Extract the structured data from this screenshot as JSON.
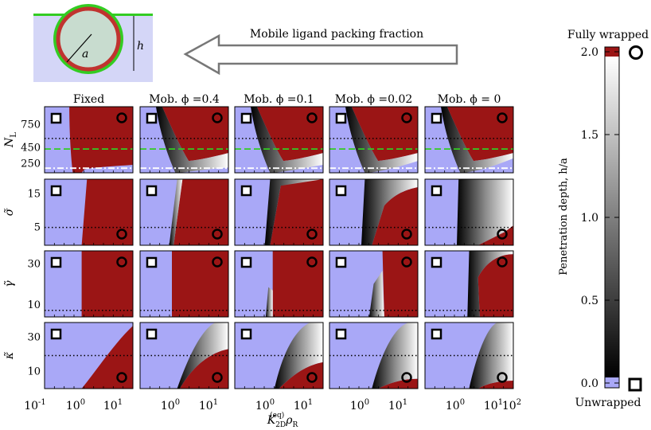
{
  "header": {
    "arrow_label": "Mobile ligand packing fraction",
    "radius_label": "a",
    "depth_label": "h"
  },
  "columns": [
    {
      "title": "Fixed",
      "phi": null
    },
    {
      "title": "Mob. ϕ =0.4",
      "phi": 0.4
    },
    {
      "title": "Mob. ϕ =0.1",
      "phi": 0.1
    },
    {
      "title": "Mob. ϕ =0.02",
      "phi": 0.02
    },
    {
      "title": "Mob. ϕ = 0",
      "phi": 0
    }
  ],
  "rows": [
    {
      "ylabel": "N",
      "ylabel_sub": "L",
      "ticks": [
        "750",
        "450",
        "250"
      ],
      "ticks_display": [
        "750",
        "450",
        "250"
      ]
    },
    {
      "ylabel": "σ̃",
      "ylabel_sub": "",
      "ticks": [
        "15",
        "5"
      ]
    },
    {
      "ylabel": "γ̃",
      "ylabel_sub": "",
      "ticks": [
        "30",
        "10"
      ]
    },
    {
      "ylabel": "κ̃",
      "ylabel_sub": "",
      "ticks": [
        "30",
        "10"
      ]
    }
  ],
  "xaxis": {
    "label": "K",
    "label_sup": "(eq)",
    "label_sub": "2D",
    "label_tail": "ρ",
    "label_tail_sub": "R",
    "ticks": [
      {
        "base": "10",
        "exp": "-1"
      },
      {
        "base": "10",
        "exp": "0"
      },
      {
        "base": "10",
        "exp": "1"
      },
      {
        "base": "10",
        "exp": "0"
      },
      {
        "base": "10",
        "exp": "1"
      },
      {
        "base": "10",
        "exp": "0"
      },
      {
        "base": "10",
        "exp": "1"
      },
      {
        "base": "10",
        "exp": "0"
      },
      {
        "base": "10",
        "exp": "1"
      },
      {
        "base": "10",
        "exp": "0"
      },
      {
        "base": "10",
        "exp": "1"
      },
      {
        "base": "10",
        "exp": "2"
      }
    ]
  },
  "colorbar": {
    "top_label": "Fully wrapped",
    "bottom_label": "Unwrapped",
    "axis_label": "Penetration depth, h/a",
    "ticks": [
      "2.0",
      "1.5",
      "1.0",
      "0.5",
      "0.0"
    ]
  },
  "colors": {
    "wrapped": "#9b1515",
    "unwrapped": "#a9a8f7",
    "guide_dashed": "#33cc22",
    "guide_dashdot": "#ffffff",
    "ring_green": "#33cc22",
    "ring_red": "#c0332f"
  },
  "chart_data": {
    "type": "heatmap",
    "x_scale": "log",
    "xlim": [
      0.1,
      100
    ],
    "colorbar_range": [
      0.0,
      2.0
    ],
    "colorbar_ticks": [
      0.0,
      0.5,
      1.0,
      1.5,
      2.0
    ],
    "row_variables": [
      "N_L",
      "σ̃",
      "γ̃",
      "κ̃"
    ],
    "column_conditions": [
      "Fixed",
      "Mobile ϕ=0.4",
      "Mobile ϕ=0.1",
      "Mobile ϕ=0.02",
      "Mobile ϕ=0"
    ],
    "dotted_reference": {
      "N_L": 500,
      "σ̃": 5,
      "γ̃": 5,
      "κ̃": 20
    },
    "guide_lines_row1": {
      "dashed": 350,
      "dashdot": 125
    }
  }
}
